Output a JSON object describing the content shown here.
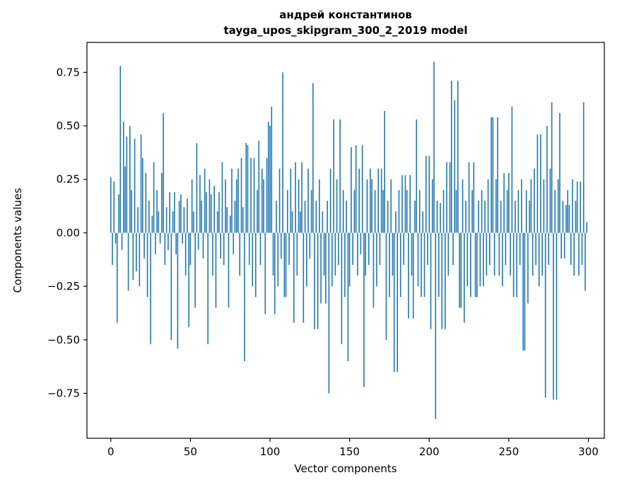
{
  "chart_data": {
    "type": "bar",
    "title_line1": "андрей константинов",
    "title_line2": "tayga_upos_skipgram_300_2_2019 model",
    "xlabel": "Vector components",
    "ylabel": "Components values",
    "legend": null,
    "grid": false,
    "bar_color": "#1f77b4",
    "axis_color": "#000000",
    "xlim": [
      -15,
      310
    ],
    "ylim": [
      -0.96,
      0.89
    ],
    "x_ticks": [
      0,
      50,
      100,
      150,
      200,
      250,
      300
    ],
    "x_tick_labels": [
      "0",
      "50",
      "100",
      "150",
      "200",
      "250",
      "300"
    ],
    "y_ticks": [
      0.75,
      0.5,
      0.25,
      0,
      -0.25,
      -0.5,
      -0.75
    ],
    "y_tick_labels": [
      "0.75",
      "0.50",
      "0.25",
      "0.00",
      "−0.25",
      "−0.50",
      "−0.75"
    ],
    "x": "index 0..299",
    "values": [
      0.26,
      -0.15,
      0.24,
      -0.05,
      -0.42,
      0.18,
      0.78,
      -0.08,
      0.52,
      0.31,
      0.45,
      -0.27,
      0.5,
      0.2,
      -0.22,
      0.44,
      -0.18,
      0.12,
      -0.25,
      0.46,
      0.35,
      -0.12,
      0.28,
      -0.3,
      0.15,
      -0.52,
      0.08,
      0.33,
      -0.1,
      0.2,
      0.1,
      -0.05,
      0.28,
      0.56,
      -0.15,
      0.12,
      -0.08,
      0.19,
      -0.5,
      0.1,
      0.19,
      -0.1,
      -0.54,
      0.15,
      0.18,
      -0.05,
      0.12,
      -0.2,
      0.16,
      -0.44,
      -0.15,
      0.25,
      0.1,
      -0.35,
      0.42,
      -0.08,
      0.27,
      0.15,
      -0.12,
      0.3,
      0.19,
      -0.52,
      0.25,
      0.18,
      -0.2,
      0.22,
      -0.35,
      0.1,
      0.19,
      -0.12,
      0.33,
      -0.15,
      0.25,
      0.12,
      -0.35,
      0.08,
      0.3,
      -0.1,
      0.15,
      0.25,
      0.3,
      -0.2,
      0.35,
      0.12,
      -0.6,
      0.42,
      0.41,
      -0.15,
      0.35,
      -0.25,
      0.35,
      -0.3,
      0.2,
      0.43,
      -0.15,
      0.3,
      0.25,
      -0.38,
      0.35,
      0.52,
      0.5,
      0.59,
      -0.2,
      -0.38,
      0.15,
      -0.25,
      0.3,
      -0.12,
      0.75,
      -0.3,
      -0.3,
      0.2,
      -0.15,
      0.3,
      0.1,
      -0.42,
      0.33,
      -0.2,
      0.25,
      0.1,
      0.33,
      -0.42,
      0.15,
      -0.25,
      0.3,
      -0.12,
      0.2,
      0.7,
      -0.45,
      0.15,
      -0.45,
      0.25,
      -0.33,
      0.1,
      -0.2,
      -0.33,
      0.15,
      -0.75,
      0.3,
      -0.25,
      0.53,
      -0.2,
      0.25,
      -0.15,
      0.53,
      -0.52,
      0.2,
      -0.3,
      0.15,
      -0.6,
      -0.25,
      0.4,
      -0.15,
      0.2,
      0.41,
      -0.2,
      0.3,
      -0.1,
      0.41,
      -0.72,
      -0.2,
      0.25,
      -0.15,
      0.3,
      0.25,
      -0.35,
      0.2,
      -0.25,
      0.3,
      -0.15,
      0.3,
      0.2,
      0.57,
      -0.5,
      0.15,
      -0.3,
      0.25,
      -0.2,
      -0.65,
      0.1,
      -0.65,
      0.2,
      -0.3,
      0.27,
      -0.15,
      0.27,
      0.2,
      -0.4,
      0.27,
      -0.2,
      -0.4,
      0.15,
      0.53,
      -0.25,
      0.2,
      -0.3,
      0.1,
      -0.3,
      0.36,
      -0.15,
      0.36,
      -0.45,
      0.25,
      0.8,
      -0.87,
      0.15,
      -0.3,
      0.14,
      -0.45,
      0.2,
      -0.45,
      0.33,
      -0.2,
      0.33,
      0.71,
      -0.15,
      0.62,
      0.2,
      0.71,
      -0.35,
      -0.35,
      0.25,
      -0.42,
      0.15,
      -0.25,
      0.33,
      -0.3,
      0.2,
      0.33,
      -0.3,
      -0.3,
      0.15,
      -0.25,
      0.2,
      -0.25,
      0.15,
      -0.2,
      0.25,
      -0.15,
      0.54,
      0.54,
      -0.2,
      0.25,
      0.54,
      -0.2,
      0.15,
      -0.25,
      0.28,
      -0.15,
      0.2,
      0.28,
      -0.2,
      0.59,
      -0.3,
      0.15,
      -0.3,
      0.2,
      -0.15,
      0.25,
      -0.55,
      -0.55,
      0.2,
      -0.33,
      0.15,
      0.25,
      -0.2,
      0.3,
      -0.15,
      0.46,
      -0.25,
      0.46,
      -0.2,
      0.25,
      -0.77,
      0.5,
      -0.15,
      0.3,
      0.61,
      -0.78,
      0.2,
      -0.78,
      0.25,
      0.56,
      -0.12,
      0.15,
      -0.12,
      0.13,
      0.2,
      0.13,
      -0.15,
      0.25,
      -0.2,
      0.15,
      0.24,
      -0.2,
      0.24,
      -0.15,
      0.61,
      -0.27,
      0.05
    ]
  }
}
